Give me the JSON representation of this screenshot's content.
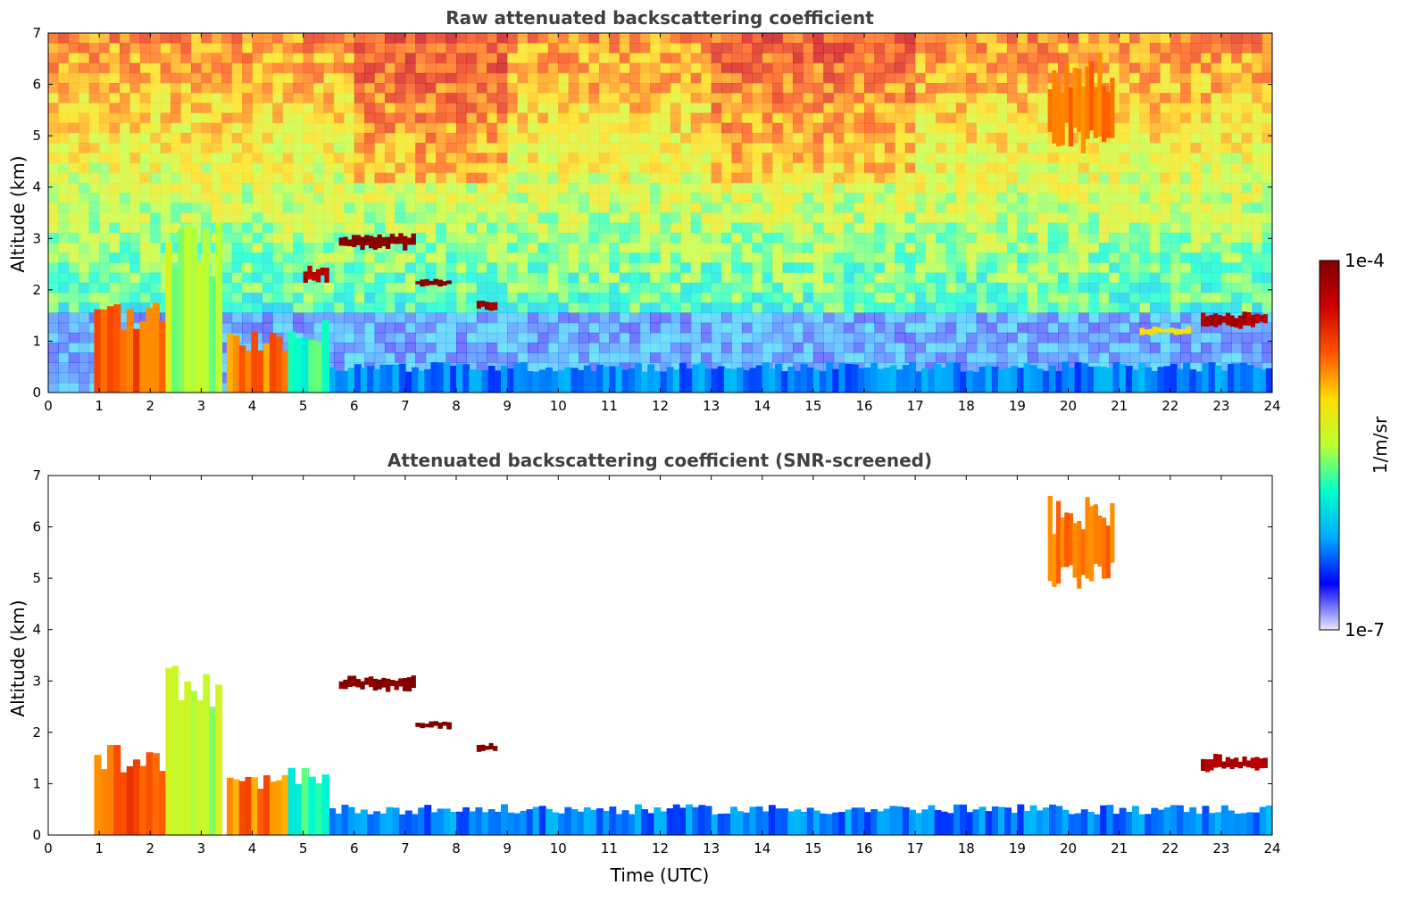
{
  "chart_data": [
    {
      "type": "heatmap",
      "title": "Raw attenuated backscattering coefficient",
      "xlabel": "",
      "ylabel": "Altitude (km)",
      "xlim": [
        0,
        24
      ],
      "ylim": [
        0,
        7
      ],
      "x_ticks": [
        "0",
        "1",
        "2",
        "3",
        "4",
        "5",
        "6",
        "7",
        "8",
        "9",
        "10",
        "11",
        "12",
        "13",
        "14",
        "15",
        "16",
        "17",
        "18",
        "19",
        "20",
        "21",
        "22",
        "23",
        "24"
      ],
      "y_ticks": [
        "0",
        "1",
        "2",
        "3",
        "4",
        "5",
        "6",
        "7"
      ],
      "screened": false,
      "features": [
        {
          "kind": "boundary-layer",
          "t_start": 5.5,
          "t_end": 24,
          "alt_top": 0.5,
          "level": 0.22
        },
        {
          "kind": "aerosol-column",
          "t_start": 0.9,
          "t_end": 2.3,
          "alt_top": 1.5,
          "level": 0.75
        },
        {
          "kind": "aerosol-column",
          "t_start": 2.3,
          "t_end": 3.4,
          "alt_top": 2.8,
          "level": 0.5
        },
        {
          "kind": "aerosol-column",
          "t_start": 3.5,
          "t_end": 4.7,
          "alt_top": 1.0,
          "level": 0.72
        },
        {
          "kind": "aerosol-column",
          "t_start": 4.7,
          "t_end": 5.5,
          "alt_top": 1.2,
          "level": 0.4
        },
        {
          "kind": "cloud",
          "t_start": 5.7,
          "t_end": 7.2,
          "alt_center": 2.95,
          "thickness": 0.2,
          "level": 0.98
        },
        {
          "kind": "cloud",
          "t_start": 7.2,
          "t_end": 7.9,
          "alt_center": 2.15,
          "thickness": 0.1,
          "level": 0.98
        },
        {
          "kind": "cloud",
          "t_start": 8.4,
          "t_end": 8.8,
          "alt_center": 1.7,
          "thickness": 0.12,
          "level": 0.95
        },
        {
          "kind": "cloud",
          "t_start": 5.0,
          "t_end": 5.5,
          "alt_center": 2.3,
          "thickness": 0.25,
          "level": 0.9
        },
        {
          "kind": "cirrus",
          "t_start": 19.6,
          "t_end": 20.9,
          "alt_center": 5.6,
          "thickness": 1.2,
          "level": 0.72
        },
        {
          "kind": "cloud",
          "t_start": 22.6,
          "t_end": 23.9,
          "alt_center": 1.4,
          "thickness": 0.2,
          "level": 0.93
        },
        {
          "kind": "cloud",
          "t_start": 21.4,
          "t_end": 22.4,
          "alt_center": 1.2,
          "thickness": 0.1,
          "level": 0.6
        }
      ]
    },
    {
      "type": "heatmap",
      "title": "Attenuated backscattering coefficient (SNR-screened)",
      "xlabel": "Time (UTC)",
      "ylabel": "Altitude (km)",
      "xlim": [
        0,
        24
      ],
      "ylim": [
        0,
        7
      ],
      "x_ticks": [
        "0",
        "1",
        "2",
        "3",
        "4",
        "5",
        "6",
        "7",
        "8",
        "9",
        "10",
        "11",
        "12",
        "13",
        "14",
        "15",
        "16",
        "17",
        "18",
        "19",
        "20",
        "21",
        "22",
        "23",
        "24"
      ],
      "y_ticks": [
        "0",
        "1",
        "2",
        "3",
        "4",
        "5",
        "6",
        "7"
      ],
      "screened": true,
      "features": [
        {
          "kind": "boundary-layer",
          "t_start": 5.5,
          "t_end": 24,
          "alt_top": 0.5,
          "level": 0.22
        },
        {
          "kind": "aerosol-column",
          "t_start": 0.9,
          "t_end": 2.3,
          "alt_top": 1.5,
          "level": 0.75
        },
        {
          "kind": "aerosol-column",
          "t_start": 2.3,
          "t_end": 3.4,
          "alt_top": 2.8,
          "level": 0.5
        },
        {
          "kind": "aerosol-column",
          "t_start": 3.5,
          "t_end": 4.7,
          "alt_top": 1.0,
          "level": 0.72
        },
        {
          "kind": "aerosol-column",
          "t_start": 4.7,
          "t_end": 5.5,
          "alt_top": 1.2,
          "level": 0.4
        },
        {
          "kind": "cloud",
          "t_start": 5.7,
          "t_end": 7.2,
          "alt_center": 2.95,
          "thickness": 0.2,
          "level": 1.0
        },
        {
          "kind": "cloud",
          "t_start": 7.2,
          "t_end": 7.9,
          "alt_center": 2.15,
          "thickness": 0.1,
          "level": 1.0
        },
        {
          "kind": "cloud",
          "t_start": 8.4,
          "t_end": 8.8,
          "alt_center": 1.7,
          "thickness": 0.12,
          "level": 1.0
        },
        {
          "kind": "cirrus",
          "t_start": 19.6,
          "t_end": 20.9,
          "alt_center": 5.6,
          "thickness": 1.2,
          "level": 0.72
        },
        {
          "kind": "cloud",
          "t_start": 22.6,
          "t_end": 23.9,
          "alt_center": 1.4,
          "thickness": 0.2,
          "level": 0.93
        }
      ]
    }
  ],
  "colorbar": {
    "label": "1/m/sr",
    "max_label": "1e-4",
    "min_label": "1e-7",
    "colormap": "jet",
    "stops": [
      "#e8e8f8",
      "#0000ff",
      "#00aaff",
      "#00ffcc",
      "#bbff33",
      "#ffdd00",
      "#ff5500",
      "#cc0000",
      "#800000"
    ]
  }
}
